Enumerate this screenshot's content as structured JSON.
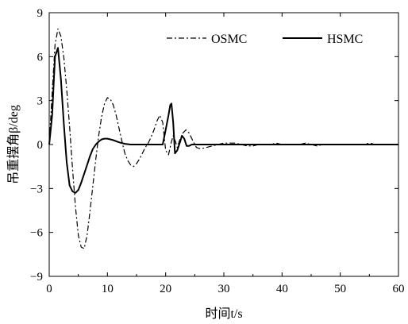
{
  "chart_data": {
    "type": "line",
    "xlabel": "时间t/s",
    "ylabel": "吊重摆角β/deg",
    "xlim": [
      0,
      60
    ],
    "ylim": [
      -9,
      9
    ],
    "xticks": [
      "0",
      "10",
      "20",
      "30",
      "40",
      "50",
      "60"
    ],
    "yticks": [
      "9",
      "6",
      "3",
      "0",
      "−3",
      "−6",
      "−9"
    ],
    "legend_position": "top-right",
    "series": [
      {
        "name": "OSMC",
        "style": "dash-dot",
        "x": [
          0,
          0.5,
          1.0,
          1.5,
          2.0,
          2.5,
          3.0,
          3.5,
          4.0,
          4.5,
          5.0,
          5.5,
          6.0,
          6.5,
          7.0,
          7.5,
          8.0,
          8.5,
          9.0,
          9.5,
          10.0,
          10.5,
          11.0,
          11.5,
          12.0,
          12.5,
          13.0,
          13.5,
          14.0,
          14.5,
          15.0,
          15.5,
          16.0,
          16.5,
          17.0,
          17.5,
          18.0,
          18.5,
          19.0,
          19.5,
          20.0,
          20.5,
          21.0,
          21.3,
          21.7,
          22.0,
          22.5,
          23.0,
          23.5,
          24.0,
          24.5,
          25.0,
          25.3,
          26.0,
          27.0,
          28.0,
          29.0,
          30.0,
          31.0,
          32.0,
          33.0,
          34.0,
          35.0,
          36.0,
          37.0,
          38.0,
          39.0,
          40.0,
          41.0,
          42.0,
          43.0,
          44.0,
          45.0,
          46.0,
          47.0,
          48.0,
          49.0,
          50.0,
          51.0,
          52.0,
          53.0,
          54.0,
          55.0,
          56.0,
          57.0,
          58.0,
          59.0,
          60.0
        ],
        "y": [
          0,
          3.5,
          6.8,
          7.9,
          7.4,
          6.0,
          3.8,
          1.2,
          -1.6,
          -4.2,
          -6.2,
          -7.0,
          -7.1,
          -6.2,
          -4.6,
          -2.8,
          -1.0,
          0.6,
          1.9,
          2.8,
          3.2,
          3.1,
          2.7,
          2.0,
          1.1,
          0.2,
          -0.6,
          -1.1,
          -1.4,
          -1.5,
          -1.3,
          -1.0,
          -0.6,
          -0.2,
          0.1,
          0.5,
          1.0,
          1.6,
          2.0,
          1.5,
          -0.4,
          -0.7,
          0.2,
          0.6,
          0.2,
          -0.2,
          0.4,
          0.8,
          1.0,
          0.8,
          0.4,
          0.0,
          -0.2,
          -0.3,
          -0.2,
          -0.1,
          0.0,
          0.1,
          0.1,
          0.1,
          0.0,
          -0.1,
          -0.1,
          0.0,
          0.0,
          0.0,
          0.1,
          0.0,
          0.0,
          0.0,
          0.0,
          0.1,
          0.0,
          -0.1,
          0.0,
          0.0,
          0.0,
          0.0,
          0.0,
          0.0,
          0.0,
          0.0,
          0.1,
          0.0,
          0.0,
          0.0,
          0.0,
          0.0
        ]
      },
      {
        "name": "HSMC",
        "style": "solid",
        "x": [
          0,
          0.5,
          1.0,
          1.5,
          2.0,
          2.5,
          3.0,
          3.5,
          4.0,
          4.5,
          5.0,
          5.5,
          6.0,
          6.5,
          7.0,
          7.5,
          8.0,
          8.5,
          9.0,
          9.5,
          10.0,
          10.5,
          11.0,
          12.0,
          13.0,
          14.0,
          15.0,
          16.0,
          17.0,
          18.0,
          19.0,
          19.5,
          20.0,
          20.5,
          20.8,
          21.0,
          21.3,
          21.6,
          22.0,
          22.5,
          22.8,
          23.2,
          23.6,
          24.0,
          24.5,
          25.0,
          26.0,
          27.0,
          28.0,
          30.0,
          35.0,
          40.0,
          45.0,
          50.0,
          55.0,
          60.0
        ],
        "y": [
          0,
          2.0,
          6.0,
          6.6,
          4.5,
          1.5,
          -1.2,
          -2.8,
          -3.2,
          -3.3,
          -3.1,
          -2.6,
          -2.0,
          -1.4,
          -0.8,
          -0.3,
          0.0,
          0.2,
          0.35,
          0.4,
          0.4,
          0.35,
          0.3,
          0.15,
          0.05,
          0.0,
          0.0,
          0.0,
          0.0,
          0.0,
          0.0,
          0.0,
          1.0,
          2.0,
          2.7,
          2.8,
          1.5,
          -0.6,
          -0.4,
          0.2,
          0.6,
          0.4,
          -0.1,
          -0.1,
          0.0,
          0.0,
          0.0,
          0.0,
          0.0,
          0.0,
          0.0,
          0.0,
          0.0,
          0.0,
          0.0,
          0.0
        ]
      }
    ]
  }
}
